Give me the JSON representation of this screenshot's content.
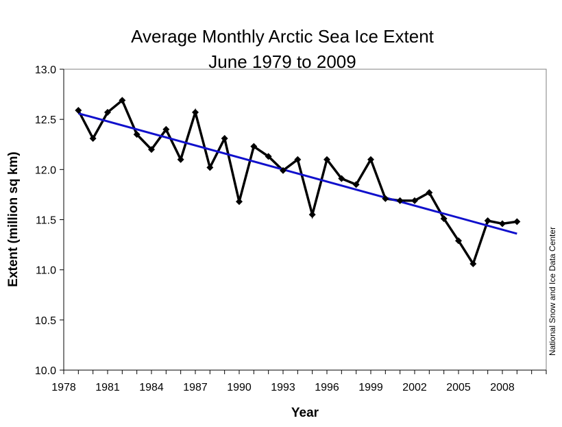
{
  "chart_data": {
    "type": "line",
    "title": "Average Monthly Arctic Sea Ice Extent",
    "subtitle": "June 1979 to 2009",
    "xlabel": "Year",
    "ylabel": "Extent (million sq km)",
    "xlim": [
      1978,
      2011
    ],
    "ylim": [
      10.0,
      13.0
    ],
    "x_ticks": [
      1978,
      1981,
      1984,
      1987,
      1990,
      1993,
      1996,
      1999,
      2002,
      2005,
      2008
    ],
    "y_ticks": [
      "10.0",
      "10.5",
      "11.0",
      "11.5",
      "12.0",
      "12.5",
      "13.0"
    ],
    "grid": false,
    "legend": "none",
    "credit": "National Snow and Ice Data Center",
    "series": [
      {
        "color": "#000000",
        "marker": "diamond",
        "x": [
          1979,
          1980,
          1981,
          1982,
          1983,
          1984,
          1985,
          1986,
          1987,
          1988,
          1989,
          1990,
          1991,
          1992,
          1993,
          1994,
          1995,
          1996,
          1997,
          1998,
          1999,
          2000,
          2001,
          2002,
          2003,
          2004,
          2005,
          2006,
          2007,
          2008,
          2009
        ],
        "values": [
          12.59,
          12.31,
          12.57,
          12.69,
          12.35,
          12.2,
          12.4,
          12.1,
          12.57,
          12.02,
          12.31,
          11.68,
          12.23,
          12.13,
          11.99,
          12.1,
          11.55,
          12.1,
          11.91,
          11.85,
          12.1,
          11.71,
          11.69,
          11.69,
          11.77,
          11.51,
          11.29,
          11.06,
          11.49,
          11.46,
          11.48
        ]
      }
    ],
    "trendline": {
      "color": "#1010cc",
      "x": [
        1979,
        2009
      ],
      "values": [
        12.56,
        11.36
      ]
    }
  }
}
